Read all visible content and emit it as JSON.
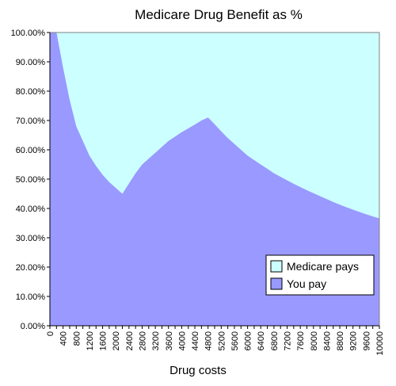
{
  "chart_data": {
    "type": "area",
    "stacked": true,
    "percent": true,
    "title": "Medicare Drug Benefit as %",
    "xlabel": "Drug costs",
    "ylabel": "",
    "ylim": [
      0,
      100
    ],
    "yticks": [
      "0.00%",
      "10.00%",
      "20.00%",
      "30.00%",
      "40.00%",
      "50.00%",
      "60.00%",
      "70.00%",
      "80.00%",
      "90.00%",
      "100.00%"
    ],
    "x": [
      0,
      200,
      400,
      600,
      800,
      1000,
      1200,
      1400,
      1600,
      1800,
      2000,
      2200,
      2400,
      2600,
      2800,
      3000,
      3200,
      3400,
      3600,
      3800,
      4000,
      4200,
      4400,
      4600,
      4800,
      5000,
      5200,
      5400,
      5600,
      5800,
      6000,
      6200,
      6400,
      6600,
      6800,
      7000,
      7200,
      7400,
      7600,
      7800,
      8000,
      8200,
      8400,
      8600,
      8800,
      9000,
      9200,
      9400,
      9600,
      9800,
      10000
    ],
    "xticks": [
      "0",
      "400",
      "800",
      "1200",
      "1600",
      "2000",
      "2400",
      "2800",
      "3200",
      "3600",
      "4000",
      "4400",
      "4800",
      "5200",
      "5600",
      "6000",
      "6400",
      "6800",
      "7200",
      "7600",
      "8000",
      "8400",
      "8800",
      "9200",
      "9600",
      "10000"
    ],
    "series": [
      {
        "name": "You pay",
        "color": "#9999ff",
        "values": [
          100,
          100,
          88,
          77,
          68,
          63,
          58,
          54.5,
          51.5,
          49,
          47,
          45,
          48.5,
          52,
          55,
          57,
          59,
          61,
          63,
          64.5,
          66,
          67.3,
          68.6,
          70,
          71,
          68.7,
          66.3,
          64,
          62,
          60,
          58,
          56.5,
          55,
          53.5,
          52,
          50.8,
          49.6,
          48.4,
          47.3,
          46.2,
          45.2,
          44.2,
          43.2,
          42.2,
          41.3,
          40.4,
          39.6,
          38.8,
          38,
          37.3,
          36.6
        ]
      },
      {
        "name": "Medicare pays",
        "color": "#ccffff",
        "values": [
          0,
          0,
          12,
          23,
          32,
          37,
          42,
          45.5,
          48.5,
          51,
          53,
          55,
          51.5,
          48,
          45,
          43,
          41,
          39,
          37,
          35.5,
          34,
          32.7,
          31.4,
          30,
          29,
          31.3,
          33.7,
          36,
          38,
          40,
          42,
          43.5,
          45,
          46.5,
          48,
          49.2,
          50.4,
          51.6,
          52.7,
          53.8,
          54.8,
          55.8,
          56.8,
          57.8,
          58.7,
          59.6,
          60.4,
          61.2,
          62,
          62.7,
          63.4
        ]
      }
    ],
    "legend": {
      "position": "bottom-right",
      "entries": [
        "Medicare pays",
        "You pay"
      ]
    },
    "grid": false
  }
}
